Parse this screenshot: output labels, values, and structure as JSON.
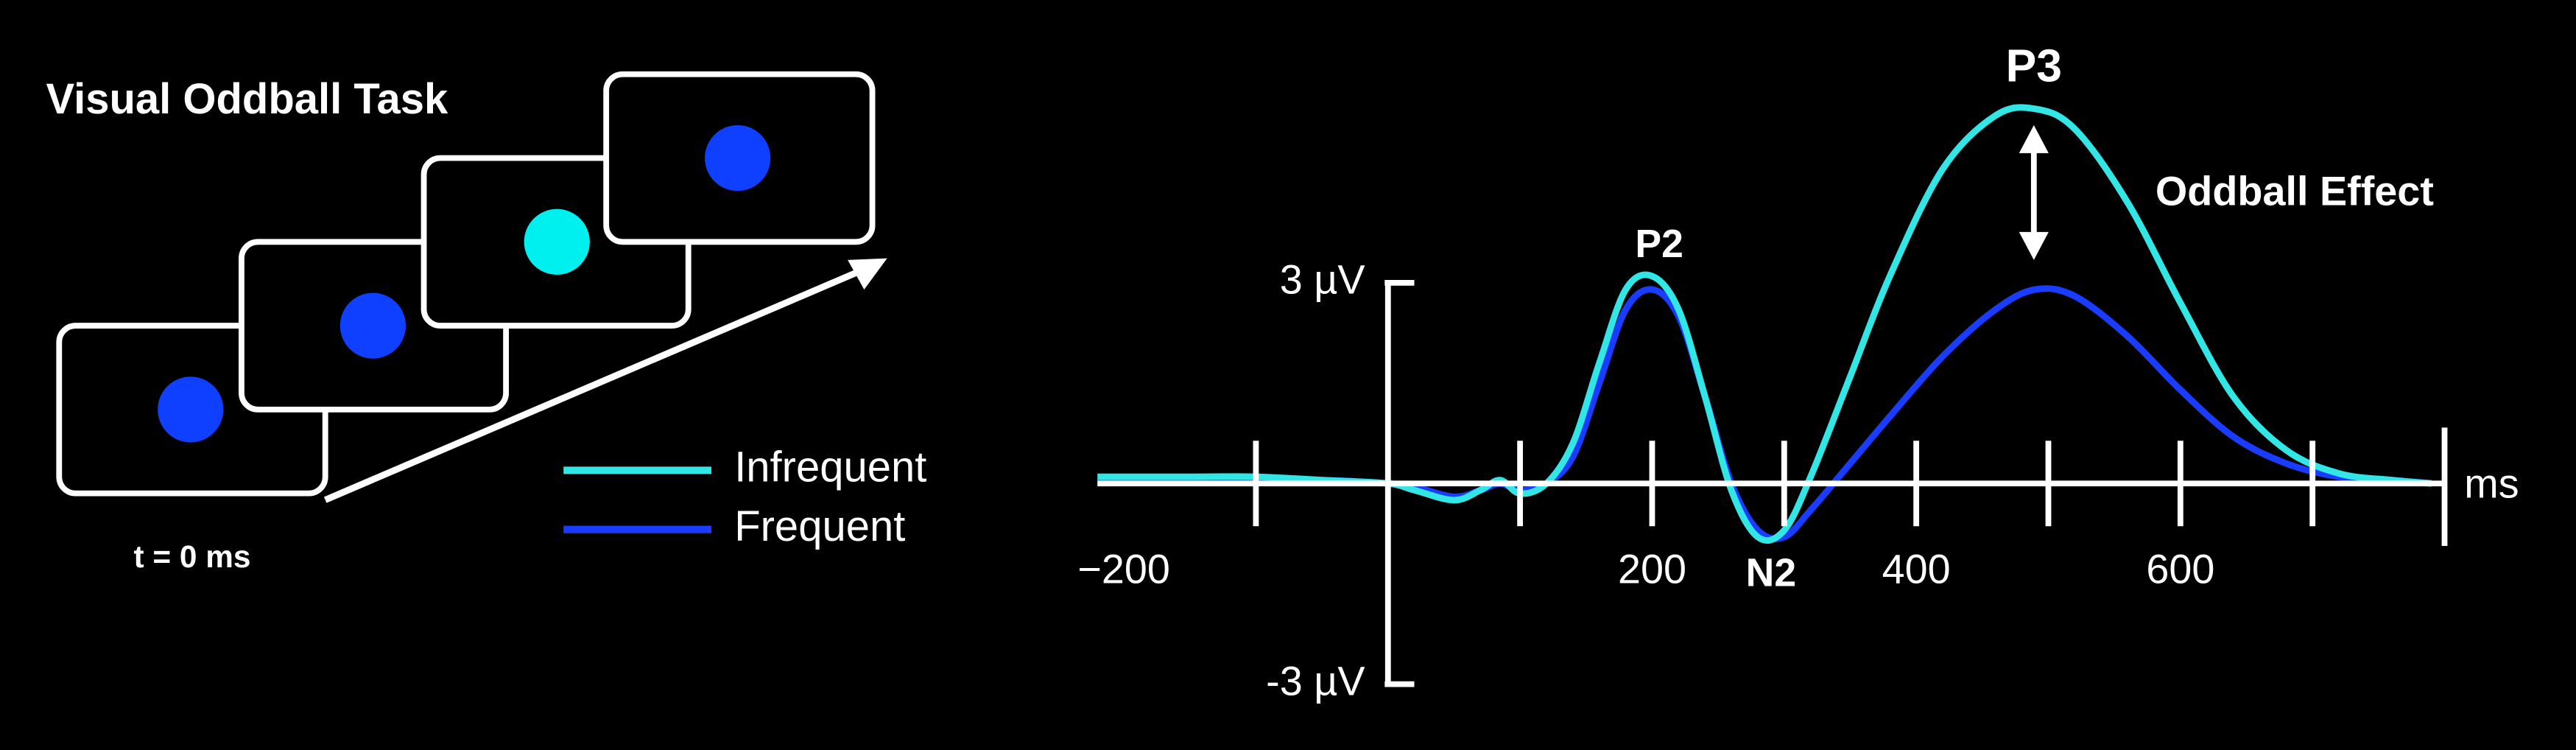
{
  "task_diagram": {
    "title": "Visual Oddball Task",
    "time_label": "t = 0 ms"
  },
  "chart_data": {
    "type": "line",
    "x_label": "ms",
    "annotations": {
      "p2": "P2",
      "n2": "N2",
      "p3": "P3",
      "effect": "Oddball Effect"
    },
    "x": [
      -220,
      -150,
      -100,
      -50,
      0,
      20,
      50,
      70,
      85,
      100,
      120,
      140,
      160,
      180,
      200,
      220,
      240,
      260,
      280,
      300,
      320,
      350,
      380,
      420,
      460,
      490,
      520,
      560,
      600,
      640,
      680,
      720,
      760,
      790
    ],
    "series": [
      {
        "name": "Infrequent",
        "color": "#33e6e6",
        "values": [
          0.1,
          0.1,
          0.1,
          0.05,
          0,
          -0.1,
          -0.25,
          -0.1,
          0.05,
          -0.15,
          0,
          0.6,
          1.8,
          2.9,
          3.1,
          2.6,
          1.3,
          -0.1,
          -0.8,
          -0.7,
          0.1,
          1.6,
          3.1,
          4.7,
          5.5,
          5.6,
          5.3,
          4.2,
          2.7,
          1.3,
          0.5,
          0.15,
          0.05,
          0
        ]
      },
      {
        "name": "Frequent",
        "color": "#1a3cff",
        "values": [
          0.05,
          0.05,
          0.05,
          0.05,
          0,
          -0.05,
          -0.2,
          -0.1,
          0,
          -0.1,
          0,
          0.4,
          1.5,
          2.6,
          2.9,
          2.5,
          1.3,
          0,
          -0.7,
          -0.8,
          -0.4,
          0.3,
          1.0,
          1.9,
          2.6,
          2.9,
          2.8,
          2.2,
          1.4,
          0.7,
          0.3,
          0.1,
          0.05,
          0
        ]
      }
    ],
    "xlim": [
      -220,
      800
    ],
    "ylim": [
      -3.4,
      6.2
    ],
    "xticks": [
      {
        "value": -200,
        "label": "−200"
      },
      200,
      400,
      600
    ],
    "xtick_marks": [
      -100,
      100,
      200,
      300,
      400,
      500,
      600,
      700,
      800
    ],
    "yticks": [
      {
        "value": 3,
        "label": "3 µV"
      },
      {
        "value": -3,
        "label": "-3 µV"
      }
    ]
  }
}
